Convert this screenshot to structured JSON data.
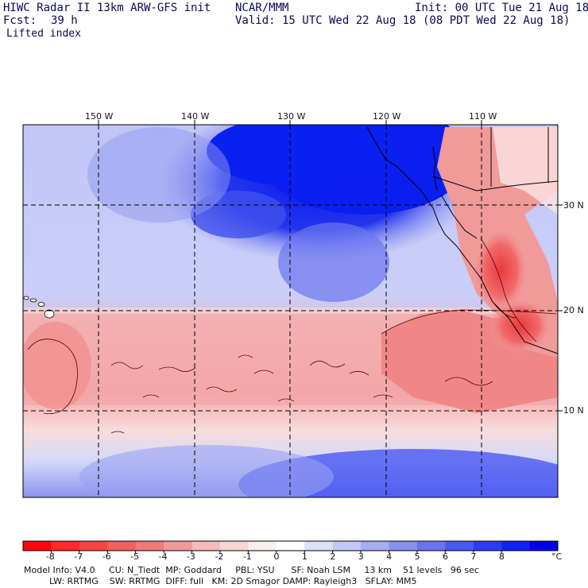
{
  "header": {
    "title": "HIWC Radar II 13km ARW-GFS init",
    "agency": "NCAR/MMM",
    "init": "Init: 00 UTC Tue 21 Aug 18",
    "fcst_label": "Fcst:",
    "fcst_value": "39 h",
    "valid": "Valid: 15 UTC Wed 22 Aug 18 (08 PDT Wed 22 Aug 18)",
    "field": "Lifted index"
  },
  "axes": {
    "lon_labels": [
      "150 W",
      "140 W",
      "130 W",
      "120 W",
      "110 W"
    ],
    "lat_labels": [
      "30 N",
      "20 N",
      "10 N"
    ]
  },
  "colorbar": {
    "ticks": [
      "-8",
      "-7",
      "-6",
      "-5",
      "-4",
      "-3",
      "-2",
      "-1",
      "0",
      "1",
      "2",
      "3",
      "4",
      "5",
      "6",
      "7",
      "8"
    ],
    "unit": "°C",
    "colors": [
      "#ff0a0a",
      "#ff2a2a",
      "#f54545",
      "#f06060",
      "#f07a7a",
      "#f09a9a",
      "#f5baba",
      "#f8d6d6",
      "#fdeeee",
      "#ffffff",
      "#dde0fb",
      "#c3c8f6",
      "#a6aef2",
      "#8791ef",
      "#6a74ef",
      "#4a58f0",
      "#2b3cf0",
      "#1024ee",
      "#0000e8"
    ]
  },
  "footer": {
    "line1": "Model Info: V4.0     CU: N_Tiedt  MP: Goddard     PBL: YSU      SF: Noah LSM     13 km    51 levels   96 sec",
    "line2": "LW: RRTMG    SW: RRTMG  DIFF: full   KM: 2D Smagor DAMP: Rayleigh3   SFLAY: MM5"
  },
  "palette": {
    "deep_blue": "#0a1ef0",
    "light_blue": "#c8cdf7",
    "pink": "#f4a0a0",
    "red": "#ee5050"
  }
}
